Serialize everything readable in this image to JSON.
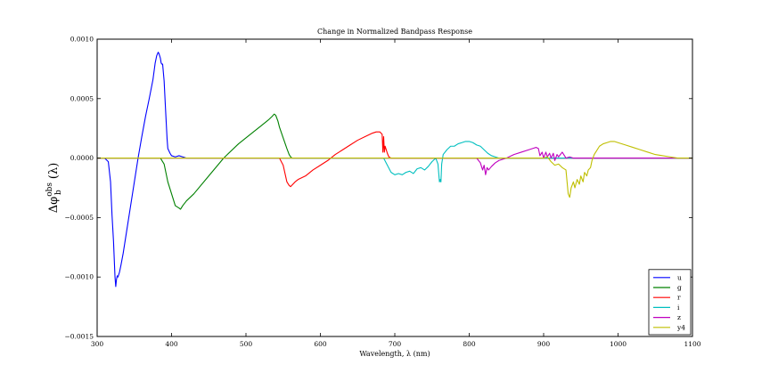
{
  "chart_data": {
    "type": "line",
    "title": "Change in Normalized Bandpass Response",
    "xlabel": "Wavelength, λ (nm)",
    "ylabel": "Δφ_b^obs (λ)",
    "xlim": [
      300,
      1100
    ],
    "ylim": [
      -0.0015,
      0.001
    ],
    "x_ticks": [
      300,
      400,
      500,
      600,
      700,
      800,
      900,
      1000,
      1100
    ],
    "x_tick_labels": [
      "300",
      "400",
      "500",
      "600",
      "700",
      "800",
      "900",
      "1000",
      "1100"
    ],
    "y_ticks": [
      0.001,
      0.0005,
      0.0,
      -0.0005,
      -0.001,
      -0.0015
    ],
    "y_tick_labels": [
      "0.0010",
      "0.0005",
      "0.0000",
      "−0.0005",
      "−0.0010",
      "−0.0015"
    ],
    "grid": false,
    "legend_position": "bottom-right",
    "series": [
      {
        "name": "u",
        "color": "#0000ff",
        "x": [
          300,
          310,
          315,
          318,
          320,
          322,
          324,
          325,
          326,
          327,
          328,
          330,
          332,
          335,
          340,
          345,
          350,
          355,
          360,
          365,
          370,
          375,
          378,
          380,
          382,
          383,
          384,
          385,
          386,
          387,
          388,
          390,
          392,
          394,
          395,
          398,
          400,
          405,
          410,
          415,
          420,
          425,
          1100
        ],
        "y": [
          0.0,
          0.0,
          -3e-05,
          -0.0002,
          -0.00048,
          -0.0007,
          -0.001,
          -0.00108,
          -0.00102,
          -0.00099,
          -0.001,
          -0.00096,
          -0.0009,
          -0.0008,
          -0.0006,
          -0.0004,
          -0.0002,
          0.0,
          0.00018,
          0.00035,
          0.0005,
          0.00066,
          0.0008,
          0.00086,
          0.00089,
          0.00088,
          0.00086,
          0.00084,
          0.0008,
          0.00079,
          0.00079,
          0.00065,
          0.0004,
          0.00016,
          8e-05,
          4e-05,
          2e-05,
          1e-05,
          2e-05,
          1e-05,
          0.0,
          0.0,
          0.0
        ]
      },
      {
        "name": "g",
        "color": "#008000",
        "x": [
          300,
          385,
          390,
          395,
          400,
          405,
          410,
          412,
          415,
          420,
          430,
          450,
          470,
          490,
          510,
          520,
          530,
          535,
          538,
          540,
          543,
          545,
          550,
          555,
          558,
          560,
          562,
          565,
          1100
        ],
        "y": [
          0.0,
          0.0,
          -5e-05,
          -0.0002,
          -0.0003,
          -0.0004,
          -0.00042,
          -0.00043,
          -0.0004,
          -0.00036,
          -0.0003,
          -0.00015,
          0.0,
          0.00012,
          0.00022,
          0.00027,
          0.00032,
          0.00035,
          0.00037,
          0.00036,
          0.00031,
          0.00026,
          0.00017,
          8e-05,
          3e-05,
          1e-05,
          0.0,
          0.0,
          0.0
        ]
      },
      {
        "name": "r",
        "color": "#ff0000",
        "x": [
          300,
          545,
          550,
          555,
          558,
          560,
          563,
          566,
          570,
          580,
          590,
          600,
          610,
          620,
          625,
          630,
          640,
          650,
          660,
          670,
          675,
          680,
          683,
          684,
          685,
          686,
          687,
          688,
          690,
          692,
          695,
          700,
          1100
        ],
        "y": [
          0.0,
          0.0,
          -6e-05,
          -0.0002,
          -0.00023,
          -0.00024,
          -0.00022,
          -0.0002,
          -0.00018,
          -0.00015,
          -0.0001,
          -6e-05,
          -2e-05,
          3e-05,
          5e-05,
          7e-05,
          0.00011,
          0.00015,
          0.00018,
          0.00021,
          0.00022,
          0.00022,
          0.0002,
          5e-05,
          0.00018,
          5e-05,
          0.0001,
          8e-05,
          4e-05,
          1e-05,
          0.0,
          0.0,
          0.0
        ]
      },
      {
        "name": "i",
        "color": "#00bfbf",
        "x": [
          300,
          685,
          690,
          695,
          700,
          705,
          710,
          715,
          720,
          725,
          730,
          735,
          740,
          745,
          750,
          755,
          758,
          760,
          761,
          762,
          763,
          765,
          770,
          775,
          780,
          785,
          790,
          795,
          800,
          805,
          810,
          815,
          820,
          825,
          830,
          835,
          840,
          1100
        ],
        "y": [
          0.0,
          0.0,
          -6e-05,
          -0.00012,
          -0.00014,
          -0.00013,
          -0.00014,
          -0.00012,
          -0.00011,
          -0.00013,
          -9e-05,
          -8e-05,
          -0.0001,
          -7e-05,
          -3e-05,
          0.0,
          -5e-05,
          -0.0002,
          -0.00018,
          -0.0002,
          -5e-05,
          3e-05,
          7e-05,
          0.0001,
          0.0001,
          0.00012,
          0.00013,
          0.00014,
          0.00014,
          0.00013,
          0.00011,
          0.0001,
          7e-05,
          4e-05,
          2e-05,
          1e-05,
          0.0,
          0.0
        ]
      },
      {
        "name": "z",
        "color": "#bf00bf",
        "x": [
          300,
          810,
          815,
          818,
          820,
          822,
          824,
          826,
          830,
          835,
          840,
          850,
          860,
          870,
          880,
          885,
          890,
          893,
          895,
          898,
          900,
          903,
          905,
          908,
          910,
          913,
          915,
          918,
          920,
          925,
          930,
          935,
          940,
          1100
        ],
        "y": [
          0.0,
          0.0,
          -4e-05,
          -0.0001,
          -6e-05,
          -0.00014,
          -8e-05,
          -0.0001,
          -7e-05,
          -4e-05,
          -2e-05,
          0.0,
          3e-05,
          5e-05,
          7e-05,
          8e-05,
          9e-05,
          8e-05,
          2e-05,
          5e-05,
          0.0,
          5e-05,
          1e-05,
          4e-05,
          0.0,
          4e-05,
          -2e-05,
          3e-05,
          1e-05,
          5e-05,
          0.0,
          1e-05,
          0.0,
          0.0
        ]
      },
      {
        "name": "y4",
        "color": "#bfbf00",
        "x": [
          300,
          900,
          905,
          910,
          915,
          920,
          925,
          930,
          933,
          935,
          937,
          940,
          942,
          945,
          948,
          950,
          953,
          955,
          958,
          960,
          963,
          965,
          968,
          970,
          975,
          980,
          985,
          990,
          995,
          1000,
          1010,
          1020,
          1030,
          1040,
          1050,
          1060,
          1070,
          1080,
          1100
        ],
        "y": [
          0.0,
          0.0,
          1e-05,
          -3e-05,
          -6e-05,
          -5e-05,
          -8e-05,
          -0.0001,
          -0.0003,
          -0.00033,
          -0.00025,
          -0.0002,
          -0.00025,
          -0.00018,
          -0.00022,
          -0.00015,
          -0.0002,
          -0.00012,
          -0.00015,
          -0.0001,
          -8e-05,
          -2e-05,
          3e-05,
          5e-05,
          0.0001,
          0.00012,
          0.00013,
          0.00014,
          0.00014,
          0.00013,
          0.00011,
          9e-05,
          7e-05,
          5e-05,
          3e-05,
          2e-05,
          1e-05,
          0.0,
          0.0
        ]
      }
    ]
  }
}
